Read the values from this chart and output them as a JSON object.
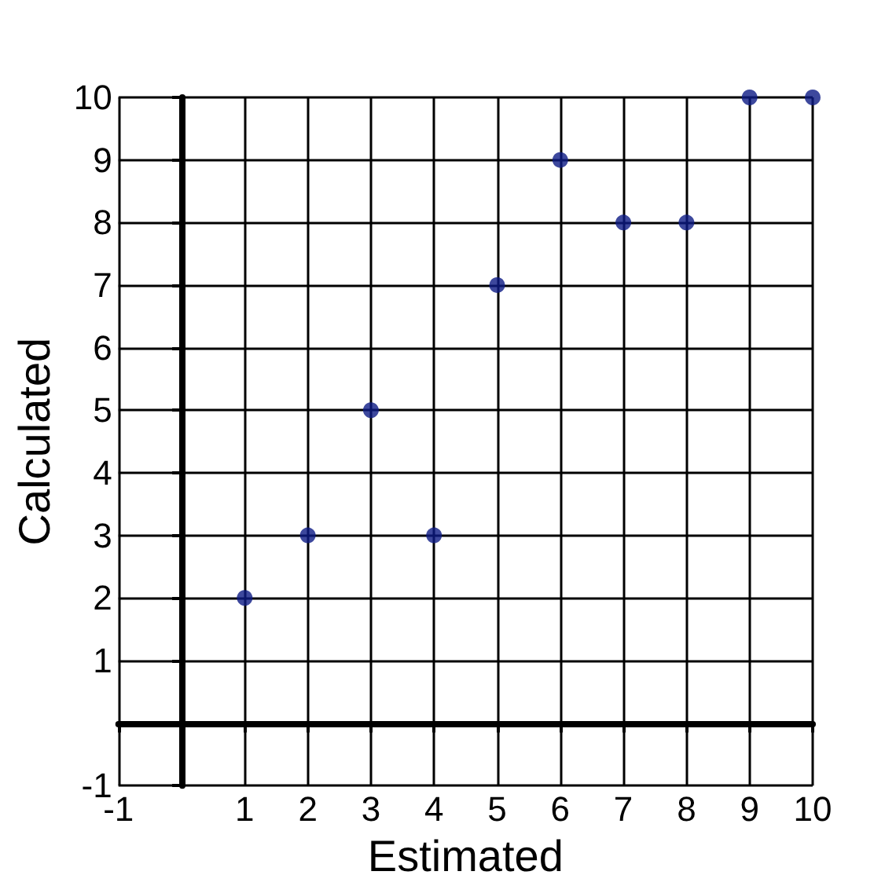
{
  "chart_data": {
    "type": "scatter",
    "xlabel": "Estimated",
    "ylabel": "Calculated",
    "x": [
      1,
      2,
      3,
      4,
      5,
      6,
      7,
      8,
      9,
      10
    ],
    "values": [
      2,
      3,
      5,
      3,
      7,
      9,
      8,
      8,
      10,
      10
    ],
    "color": "#0c1a85",
    "marker": "circle",
    "grid": true,
    "xlim": [
      -1,
      10
    ],
    "ylim": [
      -1,
      10
    ],
    "xticks": [
      -1,
      {
        "value": 0,
        "label": null
      },
      1,
      2,
      3,
      4,
      5,
      6,
      7,
      8,
      9,
      10
    ],
    "yticks": [
      -1,
      {
        "value": 0,
        "label": null
      },
      1,
      2,
      3,
      4,
      5,
      6,
      7,
      8,
      9,
      10
    ]
  }
}
